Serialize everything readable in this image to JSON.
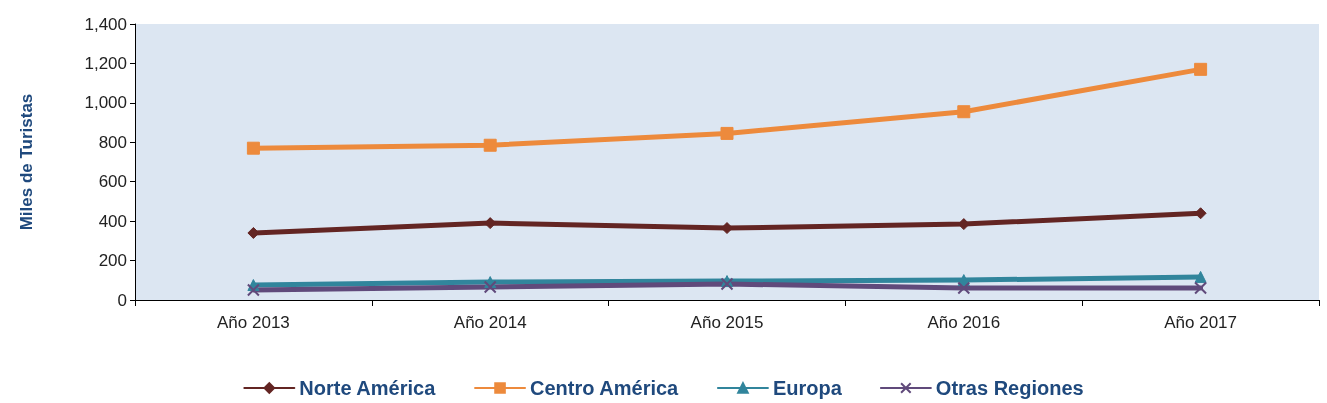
{
  "chart_data": {
    "type": "line",
    "ylabel": "Miles de Turistas",
    "categories": [
      "Año 2013",
      "Año 2014",
      "Año 2015",
      "Año 2016",
      "Año 2017"
    ],
    "series": [
      {
        "name": "Norte América",
        "color": "#632523",
        "marker": "diamond",
        "values": [
          340,
          390,
          365,
          385,
          440
        ]
      },
      {
        "name": "Centro América",
        "color": "#ed8a3c",
        "marker": "square",
        "values": [
          770,
          785,
          845,
          955,
          1170
        ]
      },
      {
        "name": "Europa",
        "color": "#31859c",
        "marker": "triangle",
        "values": [
          76,
          91,
          96,
          101,
          117
        ]
      },
      {
        "name": "Otras Regiones",
        "color": "#604a7b",
        "marker": "cross",
        "values": [
          51,
          66,
          81,
          61,
          61
        ]
      }
    ],
    "ylim": [
      0,
      1400
    ],
    "yticks": [
      0,
      200,
      400,
      600,
      800,
      {
        "value": 1000,
        "label": "1,000"
      },
      {
        "value": 1200,
        "label": "1,200"
      },
      {
        "value": 1400,
        "label": "1,400"
      }
    ],
    "grid": false,
    "legend": "bottom",
    "line_style": "solid"
  }
}
